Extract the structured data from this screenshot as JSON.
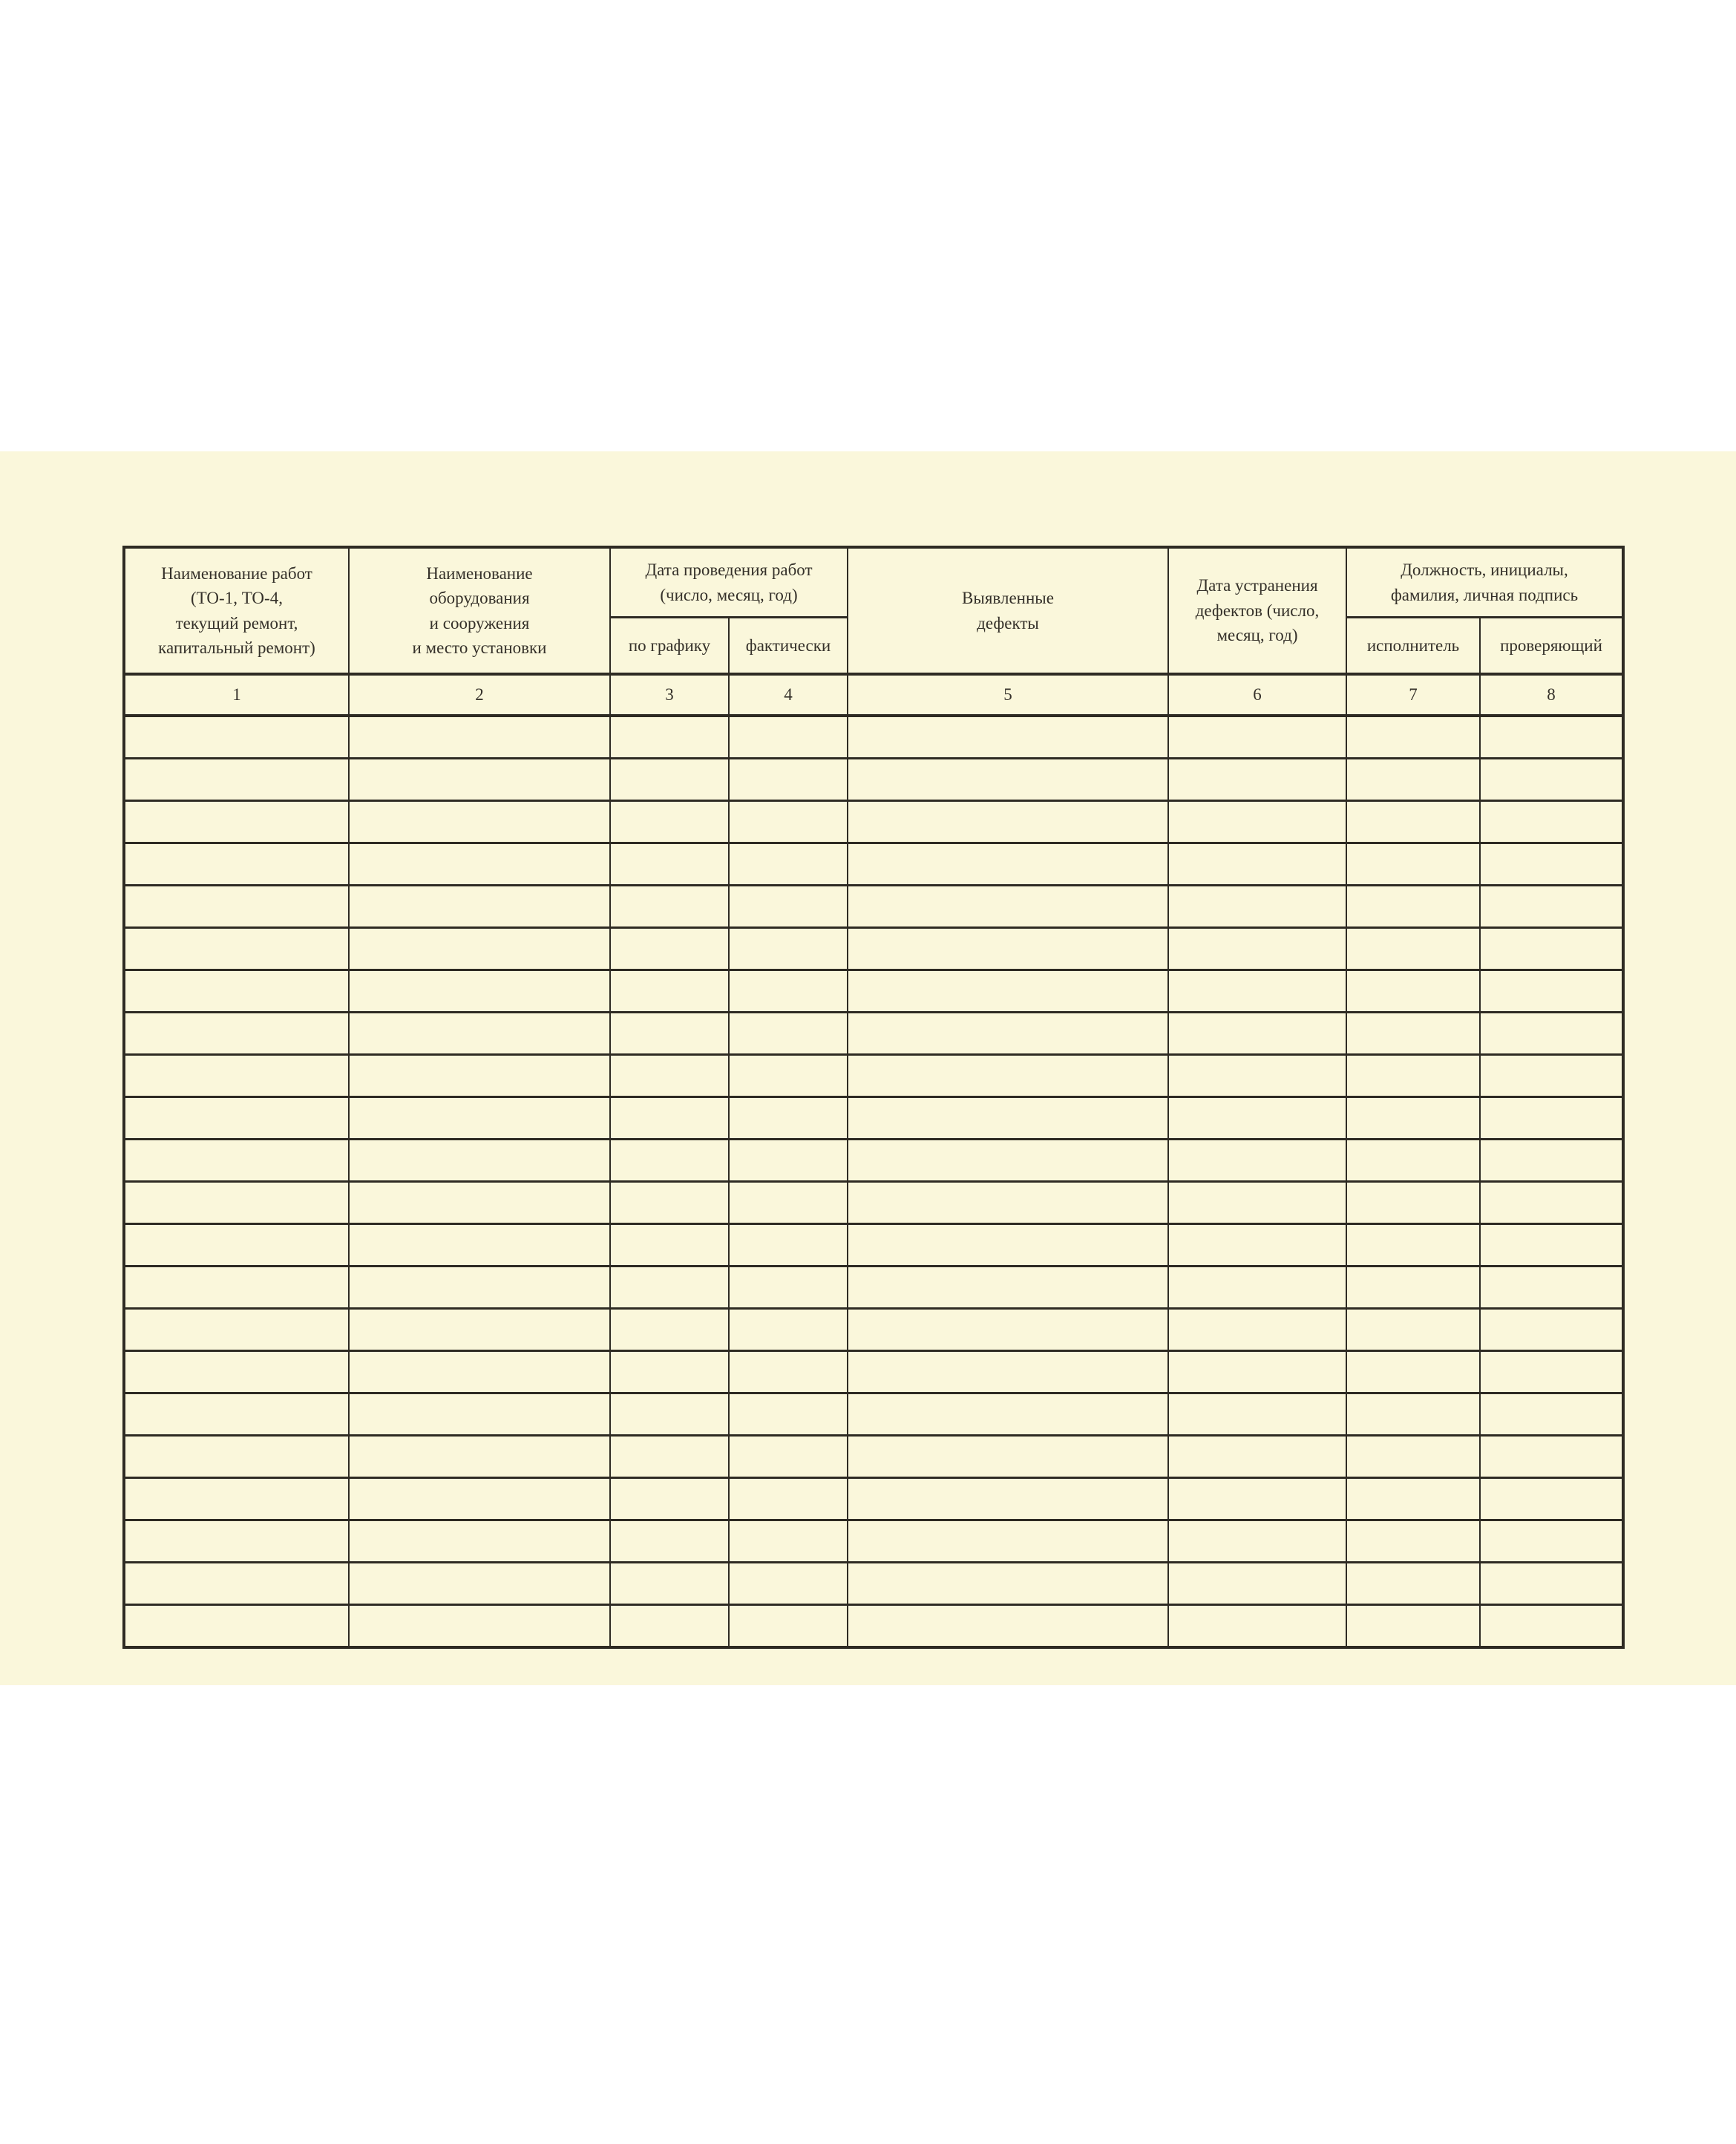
{
  "page": {
    "background_color": "#ffffff",
    "sheet_color": "#faf7db",
    "line_color": "#2e2b23",
    "text_color": "#35312a"
  },
  "table": {
    "headers": {
      "works": "Наименование работ\n(ТО-1, ТО-4,\nтекущий ремонт,\nкапитальный ремонт)",
      "equipment": "Наименование\nоборудования\nи сооружения\nи место установки",
      "work_dates_group": "Дата проведения работ\n(число, месяц, год)",
      "by_schedule": "по графику",
      "actual": "фактически",
      "defects": "Выявленные\nдефекты",
      "defect_fix_date": "Дата устранения\nдефектов (число,\nмесяц, год)",
      "signature_group": "Должность, инициалы,\nфамилия, личная подпись",
      "executor": "исполнитель",
      "inspector": "проверяющий"
    },
    "column_numbers": [
      "1",
      "2",
      "3",
      "4",
      "5",
      "6",
      "7",
      "8"
    ],
    "empty_row_count": 22
  }
}
